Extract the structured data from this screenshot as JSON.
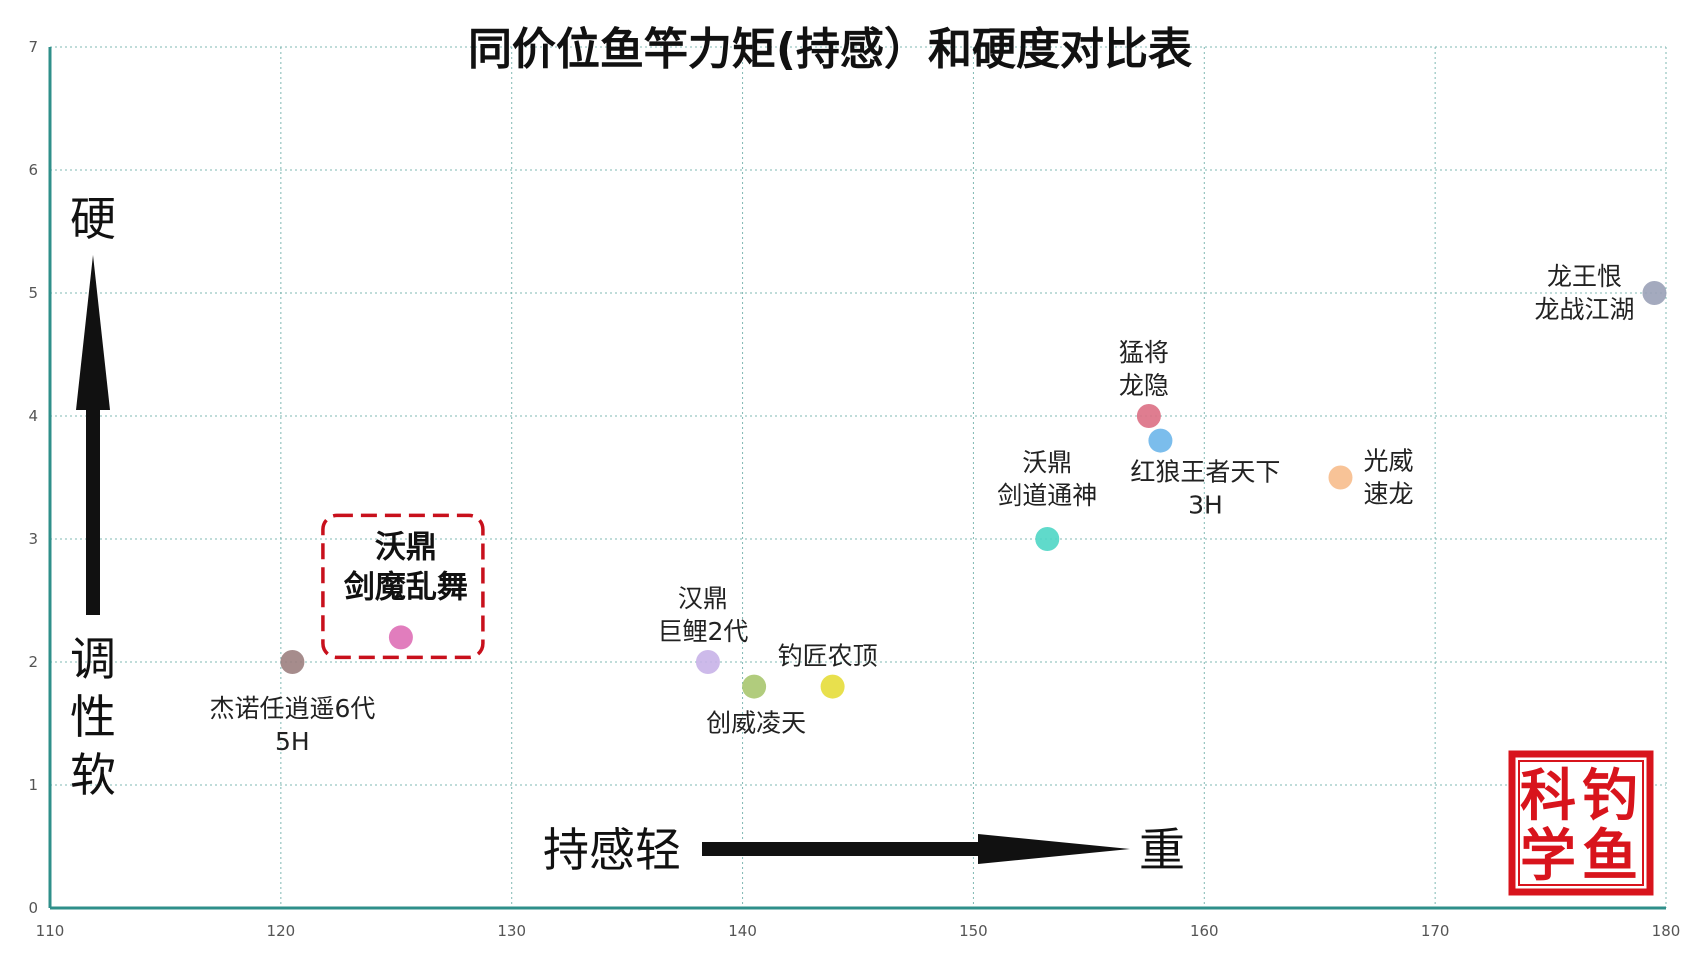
{
  "chart_data": {
    "type": "scatter",
    "title": "同价位鱼竿力矩(持感）和硬度对比表",
    "xlim": [
      110,
      180
    ],
    "ylim": [
      0,
      7
    ],
    "x_ticks": [
      "110",
      "120",
      "130",
      "140",
      "150",
      "160",
      "170",
      "180"
    ],
    "y_ticks": [
      "0",
      "1",
      "2",
      "3",
      "4",
      "5",
      "6",
      "7"
    ],
    "grid": true,
    "points": [
      {
        "name_lines": [
          "杰诺任逍遥6代",
          "5H"
        ],
        "x": 120.5,
        "y": 2.0,
        "color": "#9c7f7f"
      },
      {
        "name_lines": [
          "沃鼎",
          "剑魔乱舞"
        ],
        "x": 125.2,
        "y": 2.2,
        "color": "#de6fb6",
        "highlight": true
      },
      {
        "name_lines": [
          "汉鼎",
          "巨鲤2代"
        ],
        "x": 138.5,
        "y": 2.0,
        "color": "#c8b3e8"
      },
      {
        "name_lines": [
          "创威凌天"
        ],
        "x": 140.5,
        "y": 1.8,
        "color": "#a9c76f"
      },
      {
        "name_lines": [
          "钓匠农顶"
        ],
        "x": 143.9,
        "y": 1.8,
        "color": "#e6dd3a"
      },
      {
        "name_lines": [
          "沃鼎",
          "剑道通神"
        ],
        "x": 153.2,
        "y": 3.0,
        "color": "#4fd6c5"
      },
      {
        "name_lines": [
          "猛将",
          "龙隐"
        ],
        "x": 157.6,
        "y": 4.0,
        "color": "#dc6f84"
      },
      {
        "name_lines": [
          "红狼王者天下",
          "3H"
        ],
        "x": 158.1,
        "y": 3.8,
        "color": "#6db6ea"
      },
      {
        "name_lines": [
          "光威",
          "速龙"
        ],
        "x": 165.9,
        "y": 3.5,
        "color": "#f7bc8c"
      },
      {
        "name_lines": [
          "龙王恨",
          "龙战江湖"
        ],
        "x": 179.5,
        "y": 5.0,
        "color": "#9aa1b7"
      }
    ],
    "annotations": {
      "y_top": "硬",
      "y_bottom": [
        "调",
        "性",
        "软"
      ],
      "x_left": "持感轻",
      "x_right": "重"
    }
  },
  "seal": {
    "chars": [
      "科",
      "钓",
      "学",
      "鱼"
    ],
    "color": "#d8141c"
  },
  "colors": {
    "axis": "#2f8f8a",
    "grid": "#7fb8b3",
    "highlight_box": "#c8101c"
  }
}
